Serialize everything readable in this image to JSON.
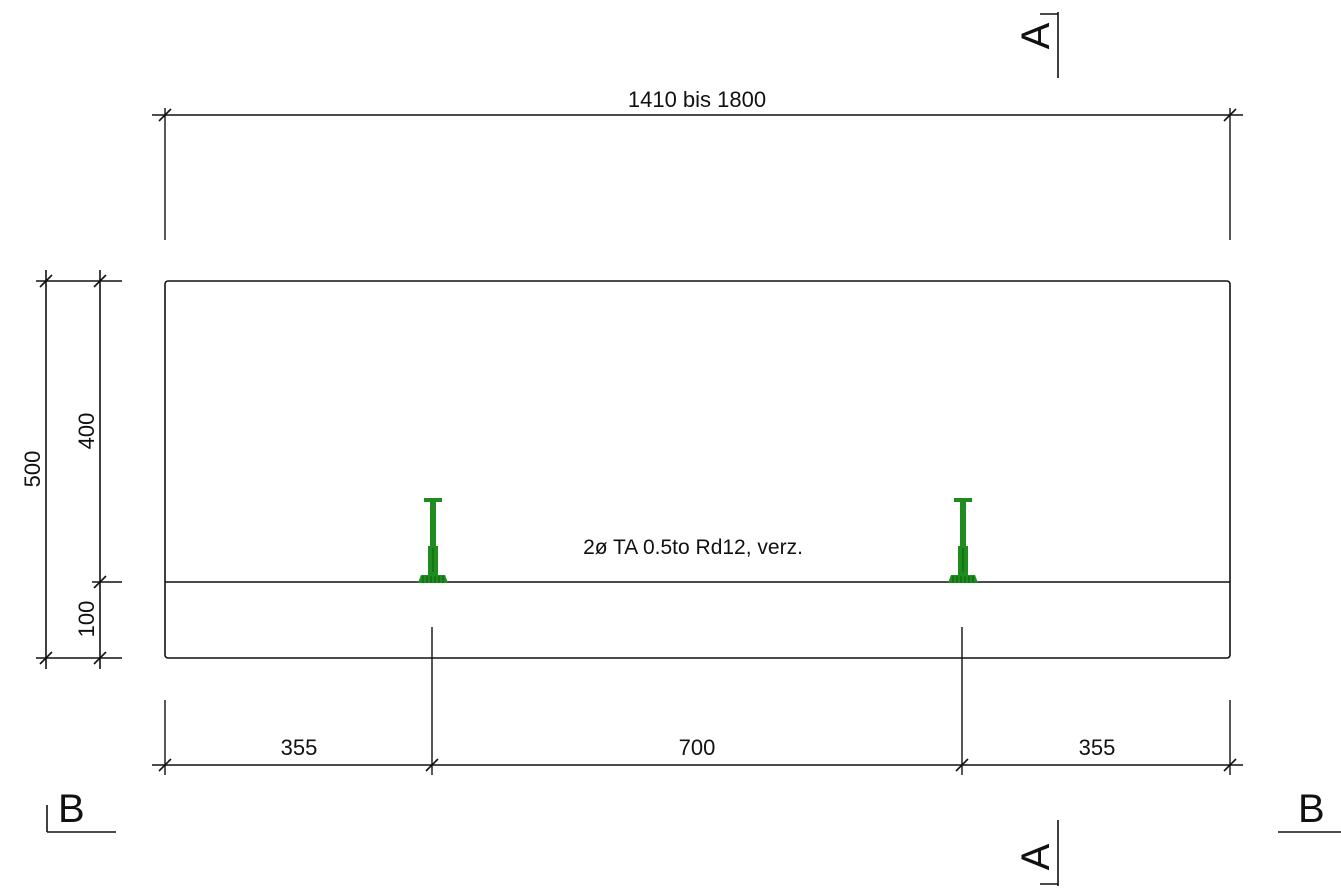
{
  "dimensions": {
    "overall_length": "1410 bis 1800",
    "height_total": "500",
    "height_upper": "400",
    "height_lower": "100",
    "spacing_left": "355",
    "spacing_middle": "700",
    "spacing_right": "355"
  },
  "anchor_note": "2ø TA 0.5to Rd12, verz.",
  "section_marks": {
    "a_top": "A",
    "a_bottom": "A",
    "b_left": "B",
    "b_right": "B"
  },
  "colors": {
    "lines": "#111111",
    "anchor": "#1e8c1e",
    "anchor_dark": "#0b5e0b"
  }
}
